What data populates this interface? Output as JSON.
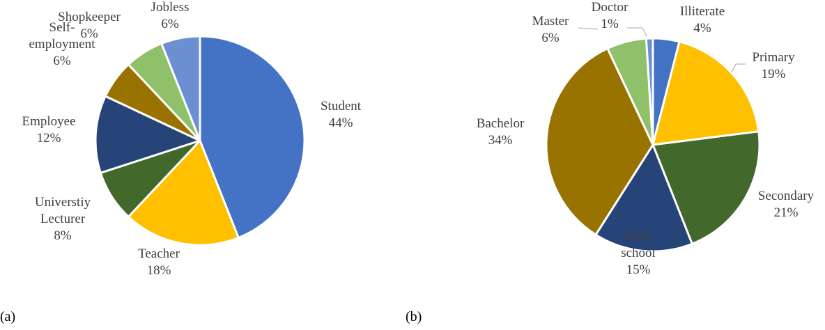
{
  "chart_data": [
    {
      "type": "pie",
      "panel": "(a)",
      "colors": [
        "#4472C4",
        "#FFC000",
        "#43682B",
        "#264478",
        "#997300",
        "#8FC06A",
        "#6B8FD0"
      ],
      "slices": [
        {
          "label": "Student",
          "value": 44,
          "value_label": "44%",
          "label_lines": [
            "Student",
            "44%"
          ]
        },
        {
          "label": "Teacher",
          "value": 18,
          "value_label": "18%",
          "label_lines": [
            "Teacher",
            "18%"
          ]
        },
        {
          "label": "Universtiy Lecturer",
          "value": 8,
          "value_label": "8%",
          "label_lines": [
            "Universtiy",
            "Lecturer",
            "8%"
          ]
        },
        {
          "label": "Employee",
          "value": 12,
          "value_label": "12%",
          "label_lines": [
            "Employee",
            "12%"
          ]
        },
        {
          "label": "Self-employment",
          "value": 6,
          "value_label": "6%",
          "label_lines": [
            "Self-",
            "employment",
            "6%"
          ]
        },
        {
          "label": "Shopkeeper",
          "value": 6,
          "value_label": "6%",
          "label_lines": [
            "Shopkeeper",
            "6%"
          ]
        },
        {
          "label": "Jobless",
          "value": 6,
          "value_label": "6%",
          "label_lines": [
            "Jobless",
            "6%"
          ]
        }
      ]
    },
    {
      "type": "pie",
      "panel": "(b)",
      "colors": [
        "#4472C4",
        "#FFC000",
        "#43682B",
        "#264478",
        "#997300",
        "#8FC06A",
        "#6B8FD0"
      ],
      "slices": [
        {
          "label": "Illiterate",
          "value": 4,
          "value_label": "4%",
          "label_lines": [
            "Illiterate",
            "4%"
          ]
        },
        {
          "label": "Primary",
          "value": 19,
          "value_label": "19%",
          "label_lines": [
            "Primary",
            "19%"
          ]
        },
        {
          "label": "Secondary",
          "value": 21,
          "value_label": "21%",
          "label_lines": [
            "Secondary",
            "21%"
          ]
        },
        {
          "label": "High school",
          "value": 15,
          "value_label": "15%",
          "label_lines": [
            "High",
            "school",
            "15%"
          ]
        },
        {
          "label": "Bachelor",
          "value": 34,
          "value_label": "34%",
          "label_lines": [
            "Bachelor",
            "34%"
          ]
        },
        {
          "label": "Master",
          "value": 6,
          "value_label": "6%",
          "label_lines": [
            "Master",
            "6%"
          ]
        },
        {
          "label": "Doctor",
          "value": 1,
          "value_label": "1%",
          "label_lines": [
            "Doctor",
            "1%"
          ]
        }
      ]
    }
  ]
}
